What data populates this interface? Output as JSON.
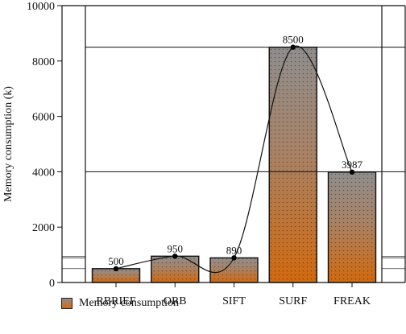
{
  "chart_data": {
    "type": "bar",
    "categories": [
      "RBRIEF",
      "ORB",
      "SIFT",
      "SURF",
      "FREAK"
    ],
    "series": [
      {
        "name": "Memory consumption",
        "values": [
          500,
          950,
          890,
          8500,
          3987
        ]
      }
    ],
    "data_labels": [
      "500",
      "950",
      "890",
      "8500",
      "3987"
    ],
    "ylabel": "Memory consumption (k)",
    "xlabel": "",
    "ylim": [
      0,
      10000
    ],
    "yticks": [
      0,
      2000,
      4000,
      6000,
      8000,
      10000
    ],
    "ytick_labels": [
      "0",
      "2000",
      "4000",
      "6000",
      "8000",
      "10000"
    ],
    "overlay": "smooth line through bar tops",
    "grid": false,
    "legend_position": "bottom-left",
    "colors": {
      "bar_top": "#8e8e8e",
      "bar_bottom": "#d2690e",
      "edge": "#111111"
    }
  }
}
